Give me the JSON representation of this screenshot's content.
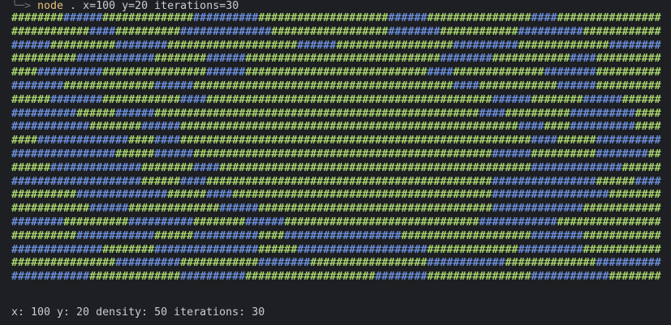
{
  "prompt": {
    "command": "node",
    "args": ". x=100 y=20 iterations=30"
  },
  "grid": {
    "rows": [
      {
        "runs": [
          {
            "text": "########",
            "color": "#a8d46f"
          },
          {
            "text": "######",
            "color": "#6b8fdb"
          },
          {
            "text": "##############",
            "color": "#a8d46f"
          },
          {
            "text": "##########",
            "color": "#6b8fdb"
          },
          {
            "text": "####################",
            "color": "#a8d46f"
          },
          {
            "text": "######",
            "color": "#6b8fdb"
          },
          {
            "text": "################",
            "color": "#a8d46f"
          },
          {
            "text": "####",
            "color": "#6b8fdb"
          },
          {
            "text": "################",
            "color": "#a8d46f"
          }
        ]
      },
      {
        "runs": [
          {
            "text": "############",
            "color": "#a8d46f"
          },
          {
            "text": "####",
            "color": "#6b8fdb"
          },
          {
            "text": "##########",
            "color": "#a8d46f"
          },
          {
            "text": "##############",
            "color": "#6b8fdb"
          },
          {
            "text": "##################",
            "color": "#a8d46f"
          },
          {
            "text": "########",
            "color": "#6b8fdb"
          },
          {
            "text": "############",
            "color": "#a8d46f"
          },
          {
            "text": "##########",
            "color": "#6b8fdb"
          },
          {
            "text": "############",
            "color": "#a8d46f"
          }
        ]
      },
      {
        "runs": [
          {
            "text": "######",
            "color": "#6b8fdb"
          },
          {
            "text": "##########",
            "color": "#a8d46f"
          },
          {
            "text": "########",
            "color": "#6b8fdb"
          },
          {
            "text": "####################",
            "color": "#a8d46f"
          },
          {
            "text": "######",
            "color": "#6b8fdb"
          },
          {
            "text": "##################",
            "color": "#a8d46f"
          },
          {
            "text": "##########",
            "color": "#6b8fdb"
          },
          {
            "text": "##############",
            "color": "#a8d46f"
          },
          {
            "text": "########",
            "color": "#6b8fdb"
          }
        ]
      },
      {
        "runs": [
          {
            "text": "##########",
            "color": "#a8d46f"
          },
          {
            "text": "############",
            "color": "#6b8fdb"
          },
          {
            "text": "########",
            "color": "#a8d46f"
          },
          {
            "text": "######",
            "color": "#6b8fdb"
          },
          {
            "text": "##############################",
            "color": "#a8d46f"
          },
          {
            "text": "########",
            "color": "#6b8fdb"
          },
          {
            "text": "############",
            "color": "#a8d46f"
          },
          {
            "text": "####",
            "color": "#6b8fdb"
          },
          {
            "text": "##########",
            "color": "#a8d46f"
          }
        ]
      },
      {
        "runs": [
          {
            "text": "####",
            "color": "#a8d46f"
          },
          {
            "text": "##########",
            "color": "#6b8fdb"
          },
          {
            "text": "################",
            "color": "#a8d46f"
          },
          {
            "text": "######",
            "color": "#6b8fdb"
          },
          {
            "text": "############################",
            "color": "#a8d46f"
          },
          {
            "text": "####",
            "color": "#6b8fdb"
          },
          {
            "text": "##############",
            "color": "#a8d46f"
          },
          {
            "text": "########",
            "color": "#6b8fdb"
          },
          {
            "text": "##########",
            "color": "#a8d46f"
          }
        ]
      },
      {
        "runs": [
          {
            "text": "########",
            "color": "#6b8fdb"
          },
          {
            "text": "##############",
            "color": "#a8d46f"
          },
          {
            "text": "######",
            "color": "#6b8fdb"
          },
          {
            "text": "########################################",
            "color": "#a8d46f"
          },
          {
            "text": "####",
            "color": "#6b8fdb"
          },
          {
            "text": "############",
            "color": "#a8d46f"
          },
          {
            "text": "######",
            "color": "#6b8fdb"
          },
          {
            "text": "##########",
            "color": "#a8d46f"
          }
        ]
      },
      {
        "runs": [
          {
            "text": "######",
            "color": "#a8d46f"
          },
          {
            "text": "########",
            "color": "#6b8fdb"
          },
          {
            "text": "############",
            "color": "#a8d46f"
          },
          {
            "text": "####",
            "color": "#6b8fdb"
          },
          {
            "text": "############################################",
            "color": "#a8d46f"
          },
          {
            "text": "######",
            "color": "#6b8fdb"
          },
          {
            "text": "########",
            "color": "#a8d46f"
          },
          {
            "text": "######",
            "color": "#6b8fdb"
          },
          {
            "text": "######",
            "color": "#a8d46f"
          }
        ]
      },
      {
        "runs": [
          {
            "text": "##########",
            "color": "#6b8fdb"
          },
          {
            "text": "######",
            "color": "#a8d46f"
          },
          {
            "text": "######",
            "color": "#6b8fdb"
          },
          {
            "text": "##################################################",
            "color": "#a8d46f"
          },
          {
            "text": "####",
            "color": "#6b8fdb"
          },
          {
            "text": "##########",
            "color": "#a8d46f"
          },
          {
            "text": "##########",
            "color": "#6b8fdb"
          },
          {
            "text": "####",
            "color": "#a8d46f"
          }
        ]
      },
      {
        "runs": [
          {
            "text": "############",
            "color": "#6b8fdb"
          },
          {
            "text": "########",
            "color": "#a8d46f"
          },
          {
            "text": "######",
            "color": "#6b8fdb"
          },
          {
            "text": "####################################################",
            "color": "#a8d46f"
          },
          {
            "text": "####",
            "color": "#6b8fdb"
          },
          {
            "text": "####",
            "color": "#a8d46f"
          },
          {
            "text": "##########",
            "color": "#6b8fdb"
          },
          {
            "text": "####",
            "color": "#a8d46f"
          }
        ]
      },
      {
        "runs": [
          {
            "text": "####",
            "color": "#a8d46f"
          },
          {
            "text": "##############",
            "color": "#6b8fdb"
          },
          {
            "text": "####",
            "color": "#a8d46f"
          },
          {
            "text": "####",
            "color": "#6b8fdb"
          },
          {
            "text": "######################################################",
            "color": "#a8d46f"
          },
          {
            "text": "####",
            "color": "#6b8fdb"
          },
          {
            "text": "######",
            "color": "#a8d46f"
          },
          {
            "text": "##########",
            "color": "#6b8fdb"
          }
        ]
      },
      {
        "runs": [
          {
            "text": "################",
            "color": "#6b8fdb"
          },
          {
            "text": "######",
            "color": "#a8d46f"
          },
          {
            "text": "######",
            "color": "#6b8fdb"
          },
          {
            "text": "##############################################",
            "color": "#a8d46f"
          },
          {
            "text": "######",
            "color": "#6b8fdb"
          },
          {
            "text": "##########",
            "color": "#a8d46f"
          },
          {
            "text": "########",
            "color": "#6b8fdb"
          },
          {
            "text": "##",
            "color": "#a8d46f"
          }
        ]
      },
      {
        "runs": [
          {
            "text": "######",
            "color": "#a8d46f"
          },
          {
            "text": "##############",
            "color": "#6b8fdb"
          },
          {
            "text": "########",
            "color": "#a8d46f"
          },
          {
            "text": "####",
            "color": "#6b8fdb"
          },
          {
            "text": "################################################",
            "color": "#a8d46f"
          },
          {
            "text": "##############",
            "color": "#6b8fdb"
          },
          {
            "text": "######",
            "color": "#a8d46f"
          }
        ]
      },
      {
        "runs": [
          {
            "text": "####################",
            "color": "#6b8fdb"
          },
          {
            "text": "######",
            "color": "#a8d46f"
          },
          {
            "text": "####",
            "color": "#6b8fdb"
          },
          {
            "text": "############################################",
            "color": "#a8d46f"
          },
          {
            "text": "################",
            "color": "#6b8fdb"
          },
          {
            "text": "######",
            "color": "#a8d46f"
          },
          {
            "text": "####",
            "color": "#6b8fdb"
          }
        ]
      },
      {
        "runs": [
          {
            "text": "##########",
            "color": "#a8d46f"
          },
          {
            "text": "##############",
            "color": "#6b8fdb"
          },
          {
            "text": "######",
            "color": "#a8d46f"
          },
          {
            "text": "####",
            "color": "#6b8fdb"
          },
          {
            "text": "########################################",
            "color": "#a8d46f"
          },
          {
            "text": "##################",
            "color": "#6b8fdb"
          },
          {
            "text": "########",
            "color": "#a8d46f"
          }
        ]
      },
      {
        "runs": [
          {
            "text": "############",
            "color": "#a8d46f"
          },
          {
            "text": "######",
            "color": "#6b8fdb"
          },
          {
            "text": "##############",
            "color": "#a8d46f"
          },
          {
            "text": "######",
            "color": "#6b8fdb"
          },
          {
            "text": "####################################",
            "color": "#a8d46f"
          },
          {
            "text": "##############",
            "color": "#6b8fdb"
          },
          {
            "text": "############",
            "color": "#a8d46f"
          }
        ]
      },
      {
        "runs": [
          {
            "text": "########",
            "color": "#6b8fdb"
          },
          {
            "text": "##########",
            "color": "#a8d46f"
          },
          {
            "text": "##########",
            "color": "#6b8fdb"
          },
          {
            "text": "########",
            "color": "#a8d46f"
          },
          {
            "text": "######",
            "color": "#6b8fdb"
          },
          {
            "text": "##############################",
            "color": "#a8d46f"
          },
          {
            "text": "############",
            "color": "#6b8fdb"
          },
          {
            "text": "################",
            "color": "#a8d46f"
          }
        ]
      },
      {
        "runs": [
          {
            "text": "##########",
            "color": "#a8d46f"
          },
          {
            "text": "############",
            "color": "#6b8fdb"
          },
          {
            "text": "######",
            "color": "#a8d46f"
          },
          {
            "text": "##########",
            "color": "#6b8fdb"
          },
          {
            "text": "####",
            "color": "#a8d46f"
          },
          {
            "text": "##################",
            "color": "#6b8fdb"
          },
          {
            "text": "####################",
            "color": "#a8d46f"
          },
          {
            "text": "########",
            "color": "#6b8fdb"
          },
          {
            "text": "############",
            "color": "#a8d46f"
          }
        ]
      },
      {
        "runs": [
          {
            "text": "##############",
            "color": "#6b8fdb"
          },
          {
            "text": "########",
            "color": "#a8d46f"
          },
          {
            "text": "################",
            "color": "#6b8fdb"
          },
          {
            "text": "######",
            "color": "#a8d46f"
          },
          {
            "text": "####################",
            "color": "#6b8fdb"
          },
          {
            "text": "##############",
            "color": "#a8d46f"
          },
          {
            "text": "##########",
            "color": "#6b8fdb"
          },
          {
            "text": "############",
            "color": "#a8d46f"
          }
        ]
      },
      {
        "runs": [
          {
            "text": "################",
            "color": "#a8d46f"
          },
          {
            "text": "##########",
            "color": "#6b8fdb"
          },
          {
            "text": "############",
            "color": "#a8d46f"
          },
          {
            "text": "########",
            "color": "#6b8fdb"
          },
          {
            "text": "##################",
            "color": "#a8d46f"
          },
          {
            "text": "############",
            "color": "#6b8fdb"
          },
          {
            "text": "##############",
            "color": "#a8d46f"
          },
          {
            "text": "##########",
            "color": "#6b8fdb"
          }
        ]
      },
      {
        "runs": [
          {
            "text": "############",
            "color": "#6b8fdb"
          },
          {
            "text": "##############",
            "color": "#a8d46f"
          },
          {
            "text": "##########",
            "color": "#6b8fdb"
          },
          {
            "text": "####################",
            "color": "#a8d46f"
          },
          {
            "text": "########",
            "color": "#6b8fdb"
          },
          {
            "text": "################",
            "color": "#a8d46f"
          },
          {
            "text": "############",
            "color": "#6b8fdb"
          },
          {
            "text": "########",
            "color": "#a8d46f"
          }
        ]
      }
    ]
  },
  "status": "x: 100 y: 20 density: 50 iterations: 30"
}
